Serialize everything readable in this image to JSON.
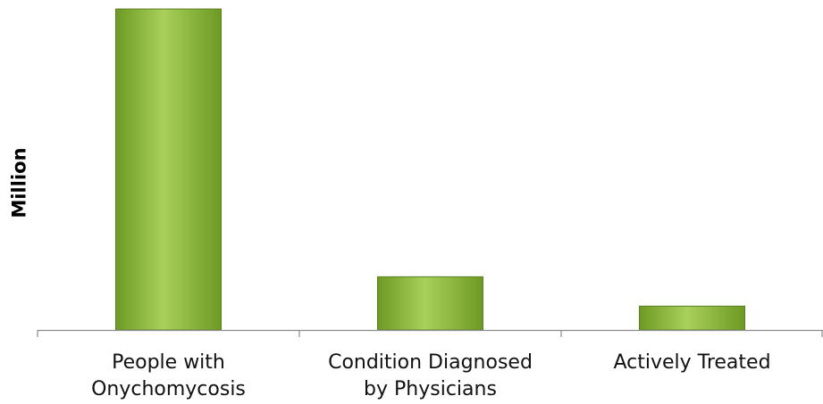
{
  "chart_data": {
    "type": "bar",
    "ylabel": "Million",
    "xlabel": "",
    "title": "",
    "categories": [
      [
        "People with",
        "Onychomycosis"
      ],
      [
        "Condition Diagnosed",
        "by Physicians"
      ],
      [
        "Actively Treated"
      ]
    ],
    "values": [
      35.0,
      5.8,
      2.6
    ],
    "ylim": [
      0,
      35.2
    ],
    "grid": false,
    "legend": "none",
    "bar_color_light": "#a8d05a",
    "bar_color_dark": "#6c9a24",
    "bar_edge_color": "#5a7f1c"
  }
}
